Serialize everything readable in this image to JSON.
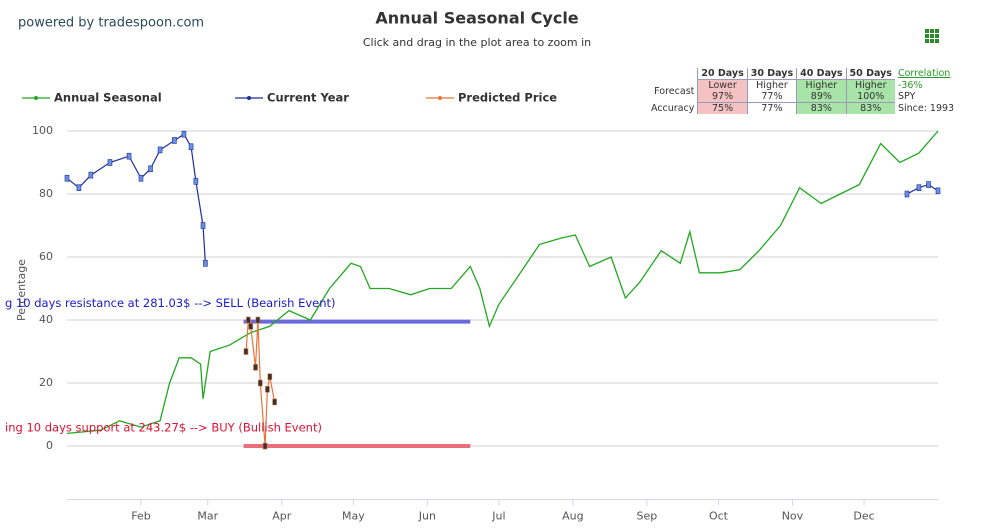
{
  "header": {
    "brand": "powered by tradespoon.com"
  },
  "chart_data": {
    "type": "line",
    "title": "Annual Seasonal Cycle",
    "subtitle": "Click and drag in the plot area to zoom in",
    "y_label": "Percentage",
    "xlim": [
      0,
      365
    ],
    "xticks": [
      {
        "value": 31,
        "label": "Feb"
      },
      {
        "value": 59,
        "label": "Mar"
      },
      {
        "value": 90,
        "label": "Apr"
      },
      {
        "value": 120,
        "label": "May"
      },
      {
        "value": 151,
        "label": "Jun"
      },
      {
        "value": 181,
        "label": "Jul"
      },
      {
        "value": 212,
        "label": "Aug"
      },
      {
        "value": 243,
        "label": "Sep"
      },
      {
        "value": 273,
        "label": "Oct"
      },
      {
        "value": 304,
        "label": "Nov"
      },
      {
        "value": 334,
        "label": "Dec"
      }
    ],
    "ylim": [
      -17,
      104
    ],
    "yticks": [
      0,
      20,
      40,
      60,
      80,
      100
    ],
    "grid": true,
    "series": [
      {
        "name": "Annual Seasonal",
        "color": "#22a822",
        "x": [
          0,
          14,
          22,
          31,
          39,
          43,
          47,
          52,
          56,
          57,
          60,
          68,
          77,
          85,
          93,
          102,
          110,
          119,
          123,
          127,
          135,
          144,
          152,
          161,
          169,
          173,
          177,
          181,
          190,
          198,
          207,
          213,
          219,
          228,
          234,
          240,
          249,
          257,
          261,
          265,
          274,
          282,
          290,
          299,
          307,
          316,
          324,
          332,
          341,
          349,
          357,
          365
        ],
        "values": [
          4,
          5,
          8,
          6,
          8,
          20,
          28,
          28,
          26,
          15,
          30,
          32,
          36,
          38,
          43,
          40,
          50,
          58,
          57,
          50,
          50,
          48,
          50,
          50,
          57,
          50,
          38,
          45,
          55,
          64,
          66,
          67,
          57,
          60,
          47,
          52,
          62,
          58,
          68,
          55,
          55,
          56,
          62,
          70,
          82,
          77,
          80,
          83,
          96,
          90,
          93,
          100
        ]
      },
      {
        "name": "Current Year",
        "color": "#1f2f9a",
        "x": [
          0,
          5,
          10,
          18,
          26,
          31,
          35,
          39,
          45,
          49,
          52,
          54,
          57,
          58,
          200,
          352,
          357,
          361,
          365
        ],
        "values": [
          85,
          82,
          86,
          90,
          92,
          85,
          88,
          94,
          97,
          99,
          95,
          84,
          70,
          58,
          null,
          80,
          82,
          83,
          81
        ]
      },
      {
        "name": "Predicted Price",
        "color": "#e8743b",
        "x": [
          75,
          76,
          77,
          79,
          80,
          81,
          83,
          84,
          85,
          87
        ],
        "values": [
          30,
          40,
          38,
          25,
          40,
          20,
          0,
          18,
          22,
          14
        ]
      }
    ],
    "events": [
      {
        "label": "g 10 days resistance at 281.03$ --> SELL (Bearish Event)",
        "value": 39.5,
        "x": [
          74,
          169
        ],
        "color": "#6b6bdc",
        "text_color": "#1a1acc"
      },
      {
        "label": "ing 10 days support at 243.27$ --> BUY (Bullish Event)",
        "value": 0,
        "x": [
          74,
          169
        ],
        "color": "#e8707a",
        "text_color": "#dd1133"
      }
    ]
  },
  "forecast_table": {
    "columns": [
      "20 Days",
      "30 Days",
      "40 Days",
      "50 Days"
    ],
    "rows": [
      {
        "label": "Forecast",
        "cells": [
          {
            "text": "Lower",
            "value": "97%",
            "color": "#f4c2c2"
          },
          {
            "text": "Higher",
            "value": "77%",
            "color": "#ffffff"
          },
          {
            "text": "Higher",
            "value": "89%",
            "color": "#a8e4a8"
          },
          {
            "text": "Higher",
            "value": "100%",
            "color": "#a8e4a8"
          }
        ]
      },
      {
        "label": "Accuracy",
        "cells": [
          {
            "value": "75%",
            "color": "#f4c2c2"
          },
          {
            "value": "77%",
            "color": "#ffffff"
          },
          {
            "value": "83%",
            "color": "#a8e4a8"
          },
          {
            "value": "83%",
            "color": "#a8e4a8"
          }
        ]
      }
    ],
    "correlation_title": "Correlation",
    "correlation": "-36%",
    "symbol": "SPY",
    "since": "Since: 1993"
  }
}
